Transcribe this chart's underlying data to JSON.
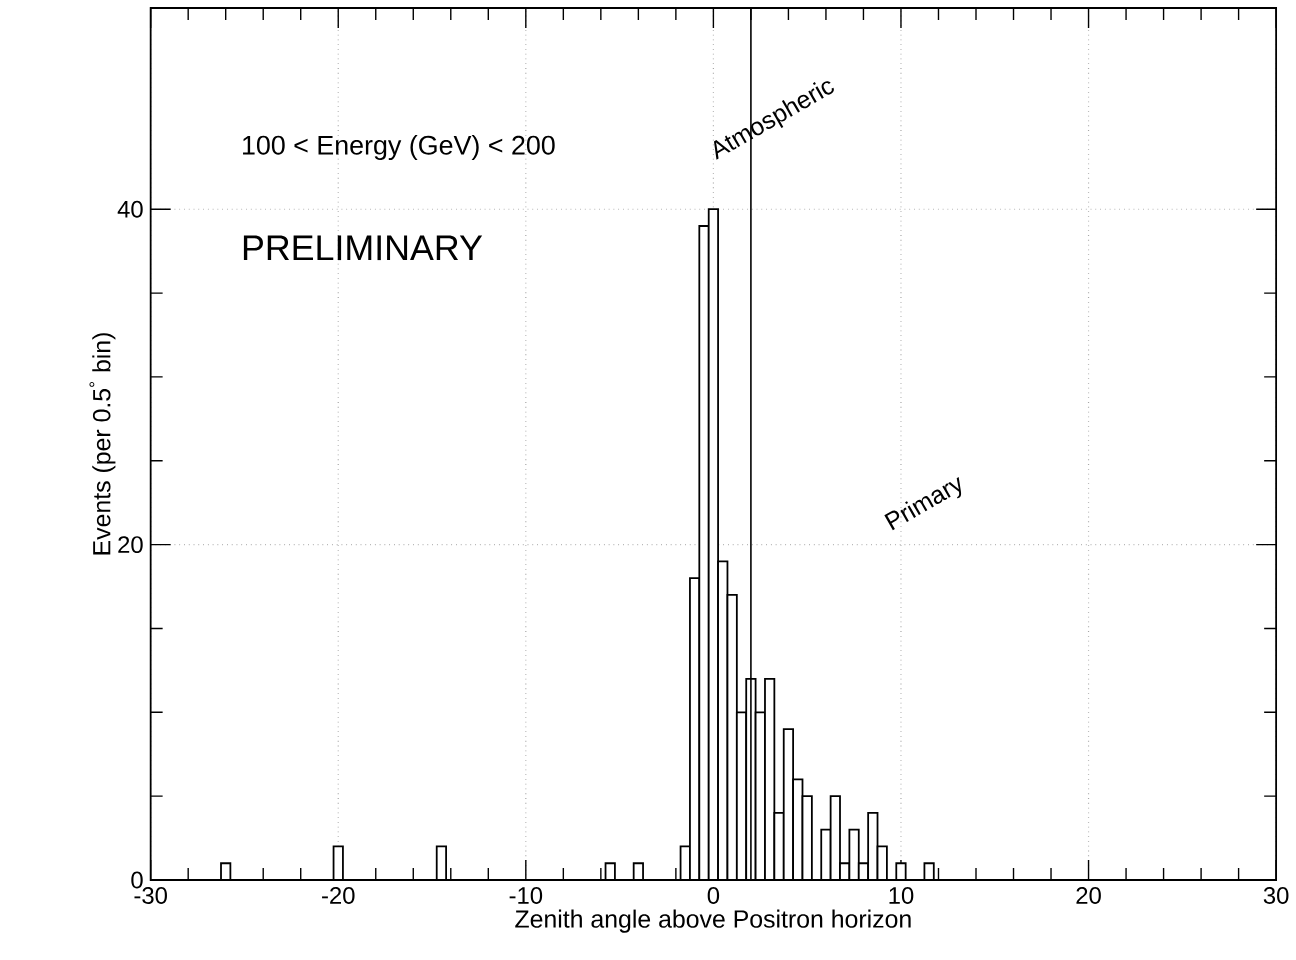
{
  "chart_data": {
    "type": "histogram",
    "xlabel": "Zenith angle above Positron horizon",
    "ylabel": "Events (per 0.5$^{°}$ bin)",
    "annotations": [
      "100 < Energy (GeV) < 200",
      "PRELIMINARY",
      "Atmospheric",
      "Primary"
    ],
    "bins": [
      -26.25,
      -25.75,
      -25.25,
      -24.75,
      -24.25,
      -23.75,
      -23.25,
      -22.75,
      -22.25,
      -21.75,
      -21.25,
      -20.75,
      -20.25,
      -19.75,
      -19.25,
      -18.75,
      -18.25,
      -17.75,
      -17.25,
      -16.75,
      -16.25,
      -15.75,
      -15.25,
      -14.75,
      -14.25,
      -13.75,
      -13.25,
      -12.75,
      -12.25,
      -11.75,
      -11.25,
      -10.75,
      -10.25,
      -9.75,
      -9.25,
      -8.75,
      -8.25,
      -7.75,
      -7.25,
      -6.75,
      -6.25,
      -5.75,
      -5.25,
      -4.75,
      -4.25,
      -3.75,
      -3.25,
      -2.75,
      -2.25,
      -1.75,
      -1.25,
      -0.75,
      -0.25,
      0.25,
      0.75,
      1.25,
      1.75,
      2.25,
      2.75,
      3.25,
      3.75,
      4.25,
      4.75,
      5.25,
      5.75,
      6.25,
      6.75,
      7.25,
      7.75,
      8.25,
      8.75,
      9.25,
      9.75,
      10.25,
      10.75,
      11.25,
      11.75
    ],
    "values": [
      1,
      0,
      0,
      0,
      0,
      0,
      0,
      0,
      0,
      0,
      0,
      0,
      2,
      0,
      0,
      0,
      0,
      0,
      0,
      0,
      0,
      0,
      0,
      2,
      0,
      0,
      0,
      0,
      0,
      0,
      0,
      0,
      0,
      0,
      0,
      0,
      0,
      0,
      0,
      0,
      0,
      1,
      0,
      0,
      1,
      0,
      0,
      0,
      0,
      2,
      18,
      39,
      40,
      19,
      17,
      10,
      12,
      10,
      12,
      4,
      9,
      6,
      5,
      0,
      3,
      5,
      1,
      3,
      1,
      4,
      2,
      0,
      1,
      0,
      0,
      1
    ],
    "color": "#000000",
    "ref_lines": [
      {
        "axis": "x",
        "value": 2,
        "label": null,
        "color": "#000000"
      }
    ],
    "xlim": [
      -30,
      30
    ],
    "xticks": [
      -30,
      -20,
      -10,
      0,
      10,
      20,
      30
    ],
    "ylim": [
      0,
      52
    ],
    "yticks": [
      0,
      20,
      40
    ],
    "grid": true
  }
}
